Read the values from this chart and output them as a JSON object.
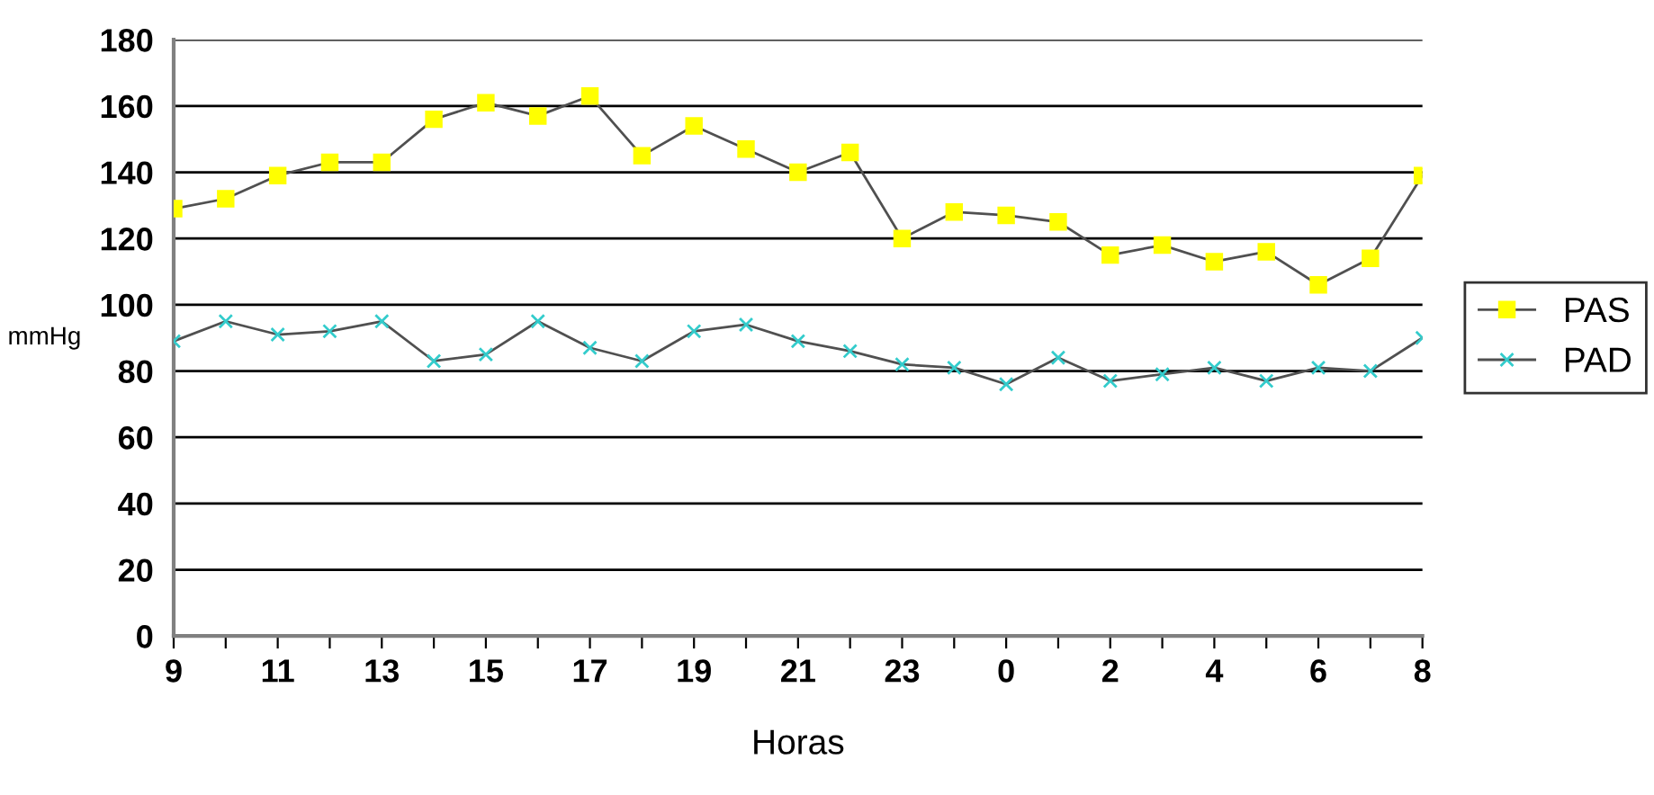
{
  "chart_data": {
    "type": "line",
    "xlabel": "Horas",
    "ylabel": "mmHg",
    "categories": [
      "9",
      null,
      "11",
      null,
      "13",
      null,
      "15",
      null,
      "17",
      null,
      "19",
      null,
      "21",
      null,
      "23",
      null,
      "0",
      null,
      "2",
      null,
      "4",
      null,
      "6",
      null,
      "8"
    ],
    "series": [
      {
        "name": "PAS",
        "color": "#ffff00",
        "marker": "square",
        "values": [
          129,
          132,
          139,
          143,
          143,
          156,
          161,
          157,
          163,
          145,
          154,
          147,
          140,
          146,
          120,
          128,
          127,
          125,
          115,
          118,
          113,
          116,
          106,
          114,
          139
        ]
      },
      {
        "name": "PAD",
        "color": "#33cccc",
        "marker": "cross",
        "values": [
          89,
          95,
          91,
          92,
          95,
          83,
          85,
          95,
          87,
          83,
          92,
          94,
          89,
          86,
          82,
          81,
          76,
          84,
          77,
          79,
          81,
          77,
          81,
          80,
          90
        ]
      }
    ],
    "ylim": [
      0,
      180
    ],
    "yticks": [
      0,
      20,
      40,
      60,
      80,
      100,
      120,
      140,
      160,
      180
    ],
    "grid": "y",
    "legend": "right"
  }
}
